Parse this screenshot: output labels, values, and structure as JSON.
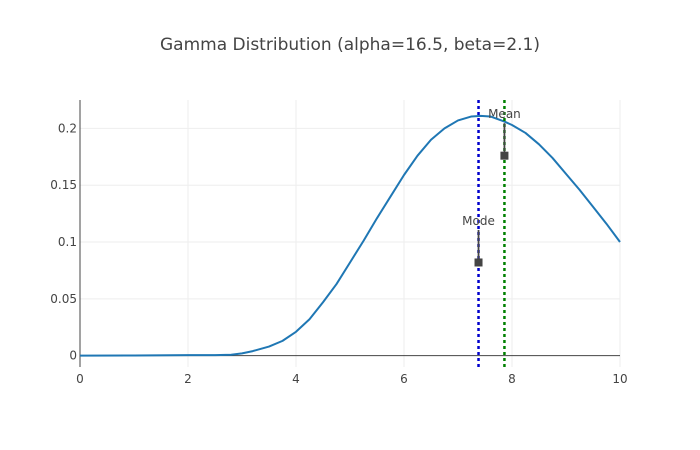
{
  "chart_data": {
    "type": "line",
    "title": "Gamma Distribution (alpha=16.5, beta=2.1)",
    "xlabel": "",
    "ylabel": "",
    "xlim": [
      0,
      10
    ],
    "ylim": [
      -0.01,
      0.225
    ],
    "x_ticks": [
      0,
      2,
      4,
      6,
      8,
      10
    ],
    "y_ticks": [
      0,
      0.05,
      0.1,
      0.15,
      0.2
    ],
    "x_tick_labels": [
      "0",
      "2",
      "4",
      "6",
      "8",
      "10"
    ],
    "y_tick_labels": [
      "0",
      "0.05",
      "0.1",
      "0.15",
      "0.2"
    ],
    "grid": true,
    "legend": "none",
    "series": [
      {
        "color": "#1f77b4",
        "points": [
          [
            0,
            0
          ],
          [
            1,
            0.0001
          ],
          [
            2,
            0.0004
          ],
          [
            2.5,
            0.0005
          ],
          [
            2.8,
            0.0008
          ],
          [
            3.0,
            0.002
          ],
          [
            3.2,
            0.004
          ],
          [
            3.5,
            0.008
          ],
          [
            3.75,
            0.013
          ],
          [
            4.0,
            0.021
          ],
          [
            4.25,
            0.032
          ],
          [
            4.5,
            0.047
          ],
          [
            4.75,
            0.063
          ],
          [
            5.0,
            0.082
          ],
          [
            5.25,
            0.101
          ],
          [
            5.5,
            0.121
          ],
          [
            5.75,
            0.14
          ],
          [
            6.0,
            0.159
          ],
          [
            6.25,
            0.176
          ],
          [
            6.5,
            0.19
          ],
          [
            6.75,
            0.2
          ],
          [
            7.0,
            0.207
          ],
          [
            7.25,
            0.2105
          ],
          [
            7.42,
            0.211
          ],
          [
            7.6,
            0.2105
          ],
          [
            7.86,
            0.206
          ],
          [
            8.0,
            0.203
          ],
          [
            8.25,
            0.196
          ],
          [
            8.5,
            0.186
          ],
          [
            8.75,
            0.174
          ],
          [
            9.0,
            0.16
          ],
          [
            9.25,
            0.146
          ],
          [
            9.5,
            0.131
          ],
          [
            9.75,
            0.116
          ],
          [
            10.0,
            0.1
          ]
        ]
      }
    ],
    "vlines": [
      {
        "x": 7.38,
        "color": "#0000cc",
        "dash": "dotted"
      },
      {
        "x": 7.86,
        "color": "#008000",
        "dash": "dotted"
      }
    ],
    "annotations": [
      {
        "text": "Mode",
        "x": 7.38,
        "y": 0.082,
        "label_y": 0.115,
        "arrow_color": "#444444"
      },
      {
        "text": "Mean",
        "x": 7.86,
        "y": 0.176,
        "label_y": 0.209,
        "arrow_color": "#444444"
      }
    ],
    "colors": {
      "grid": "#eeeeee",
      "axis": "#444444",
      "text": "#444444",
      "background": "#ffffff"
    }
  }
}
